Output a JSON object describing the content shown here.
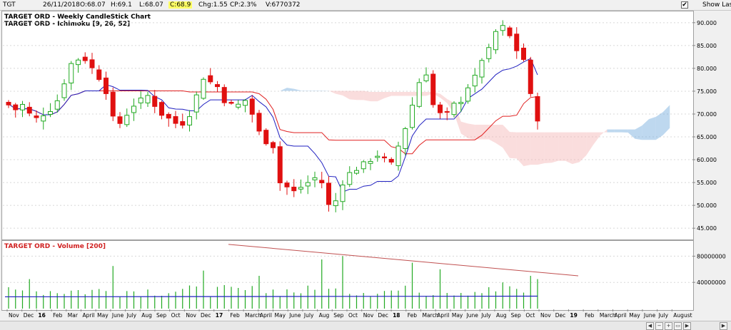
{
  "header": {
    "symbol": "TGT",
    "date": "26/11/2018",
    "open": "O:68.07",
    "high": "H:69.1",
    "low": "L:68.07",
    "close": "C:68.9",
    "change": "Chg:1.55",
    "change_pct": "CP:2.3%",
    "volume": "V:6770372",
    "show_last": "Show Last"
  },
  "price_panel": {
    "title1": "TARGET ORD - Weekly CandleStick Chart",
    "title2": "TARGET ORD - Ichimoku [9, 26, 52]"
  },
  "volume_panel": {
    "title": "TARGET ORD - Volume [200]"
  },
  "colors": {
    "up": "#22aa22",
    "down": "#e01010",
    "tenkan": "#2020c0",
    "kijun": "#e02020",
    "cloud_bull": "#6fa8dc",
    "cloud_bear": "#f4b4b4",
    "trend": "#c05050"
  },
  "chart_data": [
    {
      "type": "candlestick",
      "ylim": [
        43,
        92
      ],
      "y_ticks": [
        "45.000",
        "50.000",
        "55.000",
        "60.000",
        "65.000",
        "70.000",
        "75.000",
        "80.000",
        "85.000",
        "90.000"
      ],
      "y_tick_values": [
        45,
        50,
        55,
        60,
        65,
        70,
        75,
        80,
        85,
        90
      ],
      "x_labels": [
        "Nov",
        "Dec",
        "16",
        "Feb",
        "Mar",
        "April",
        "May",
        "June",
        "July",
        "Aug",
        "Sep",
        "Oct",
        "Nov",
        "Dec",
        "17",
        "Feb",
        "March",
        "April",
        "May",
        "June",
        "July",
        "Aug",
        "Sep",
        "Oct",
        "Nov",
        "Dec",
        "18",
        "Feb",
        "March",
        "April",
        "May",
        "June",
        "July",
        "Aug",
        "Sep",
        "Oct",
        "Nov",
        "Dec",
        "19",
        "Feb",
        "March",
        "April",
        "May",
        "June",
        "July",
        "August"
      ],
      "bold_labels": [
        "16",
        "17",
        "18",
        "19"
      ],
      "close_path": [
        72,
        71,
        72,
        70,
        69,
        70,
        71,
        73,
        77,
        81,
        82,
        82,
        80,
        78,
        75,
        69,
        68,
        70,
        72,
        73,
        74,
        72,
        70,
        69,
        68,
        68,
        70,
        74,
        78,
        77,
        76,
        73,
        72,
        72,
        73,
        70,
        66,
        64,
        63,
        55,
        54,
        53,
        54,
        55,
        56,
        55,
        50,
        51,
        55,
        57,
        58,
        59,
        60,
        61,
        60,
        59,
        63,
        67,
        72,
        77,
        79,
        72,
        70,
        70,
        72,
        73,
        76,
        78,
        82,
        84,
        88,
        89,
        87,
        84,
        82,
        74,
        69
      ]
    },
    {
      "type": "bar",
      "ylim": [
        0,
        100000000
      ],
      "y_ticks": [
        "40000000",
        "80000000"
      ],
      "y_tick_values": [
        40000000,
        80000000
      ]
    }
  ]
}
